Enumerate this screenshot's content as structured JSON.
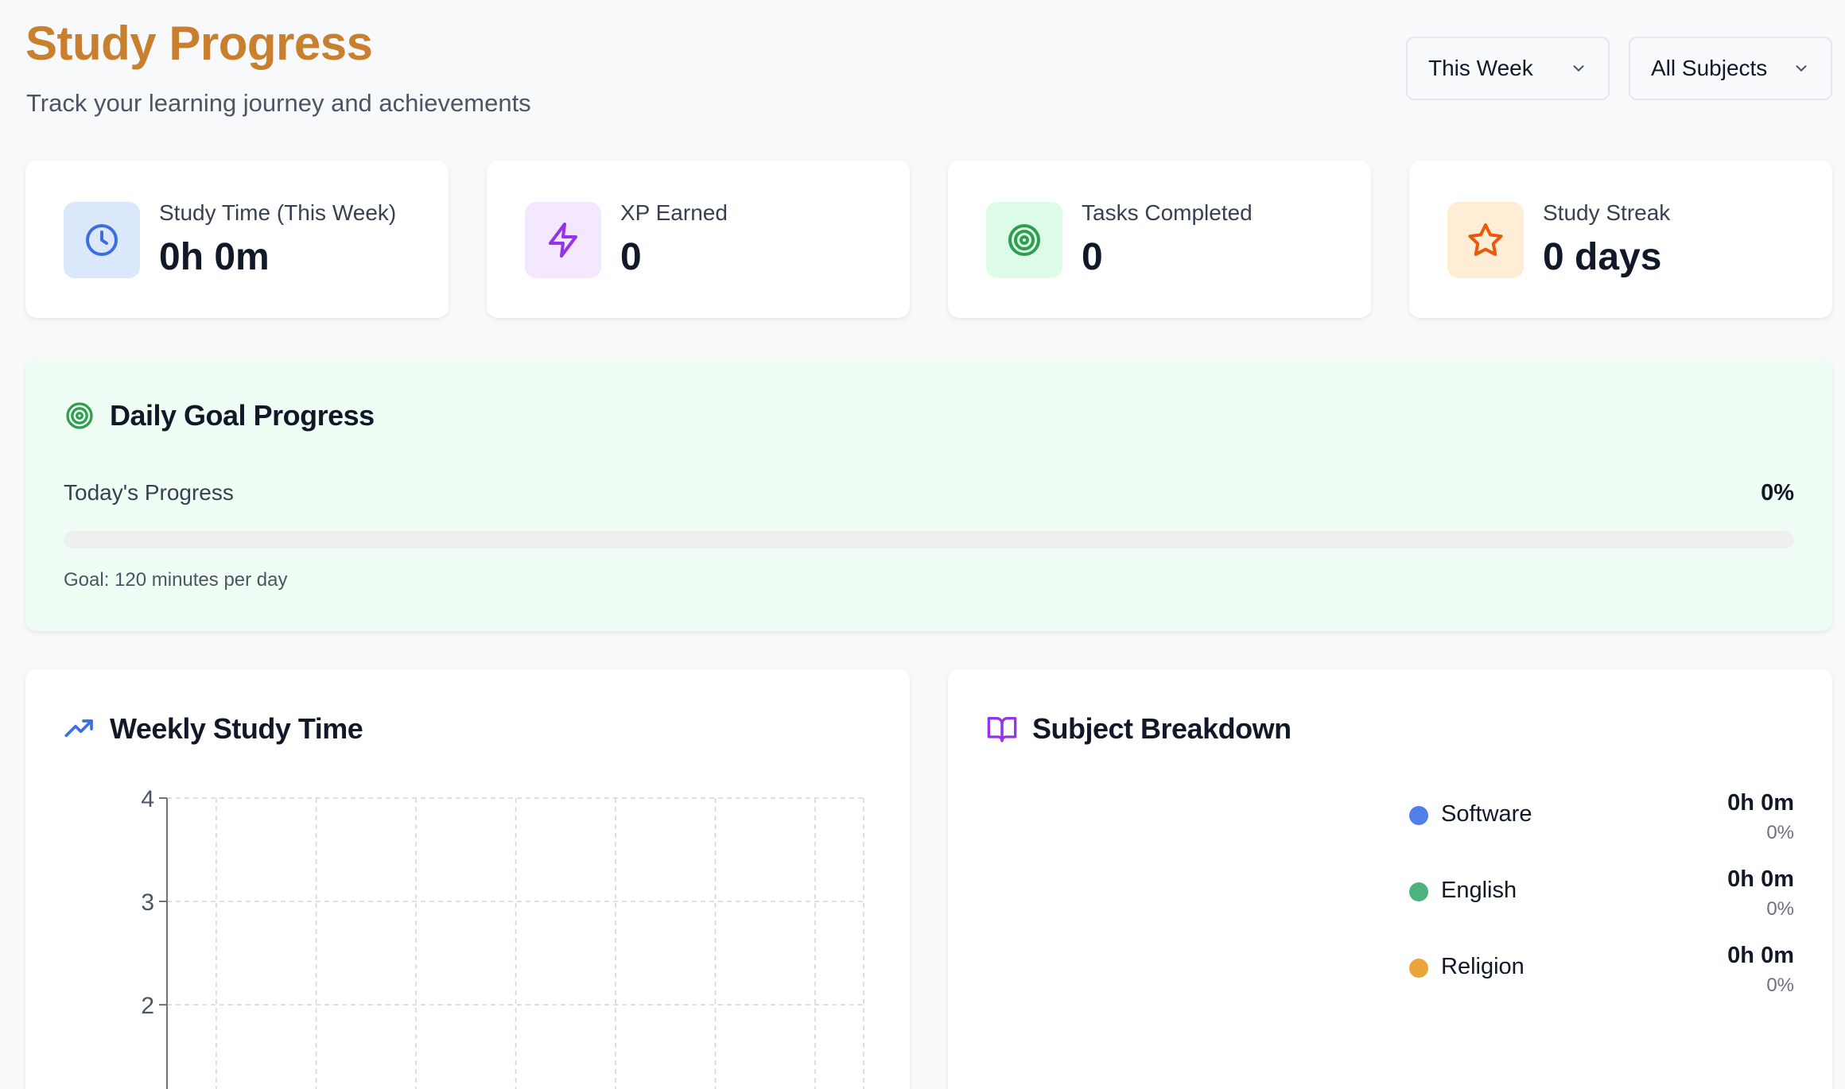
{
  "header": {
    "title": "Study Progress",
    "subtitle": "Track your learning journey and achievements",
    "filters": {
      "period": "This Week",
      "subject": "All Subjects"
    }
  },
  "stats": [
    {
      "label": "Study Time (This Week)",
      "value": "0h 0m",
      "icon": "clock-icon",
      "accent": "#3b6fe0",
      "bg": "#dbe8fc"
    },
    {
      "label": "XP Earned",
      "value": "0",
      "icon": "lightning-icon",
      "accent": "#9333ea",
      "bg": "#f3e8ff"
    },
    {
      "label": "Tasks Completed",
      "value": "0",
      "icon": "target-icon",
      "accent": "#2f9e4f",
      "bg": "#dcfce7"
    },
    {
      "label": "Study Streak",
      "value": "0 days",
      "icon": "star-icon",
      "accent": "#ea580c",
      "bg": "#ffedd5"
    }
  ],
  "daily_goal": {
    "title": "Daily Goal Progress",
    "progress_label": "Today's Progress",
    "progress_text": "0%",
    "progress_fraction": 0,
    "goal_text": "Goal: 120 minutes per day"
  },
  "weekly": {
    "title": "Weekly Study Time"
  },
  "chart_data": {
    "type": "line",
    "title": "Weekly Study Time",
    "xlabel": "",
    "ylabel": "",
    "ylim": [
      0,
      4
    ],
    "yticks": [
      4,
      3,
      2
    ],
    "grid": true,
    "series": []
  },
  "subjects": {
    "title": "Subject Breakdown",
    "items": [
      {
        "name": "Software",
        "time": "0h 0m",
        "pct": "0%",
        "color": "#4f7fe8"
      },
      {
        "name": "English",
        "time": "0h 0m",
        "pct": "0%",
        "color": "#4cb37c"
      },
      {
        "name": "Religion",
        "time": "0h 0m",
        "pct": "0%",
        "color": "#e9a43a"
      }
    ]
  }
}
